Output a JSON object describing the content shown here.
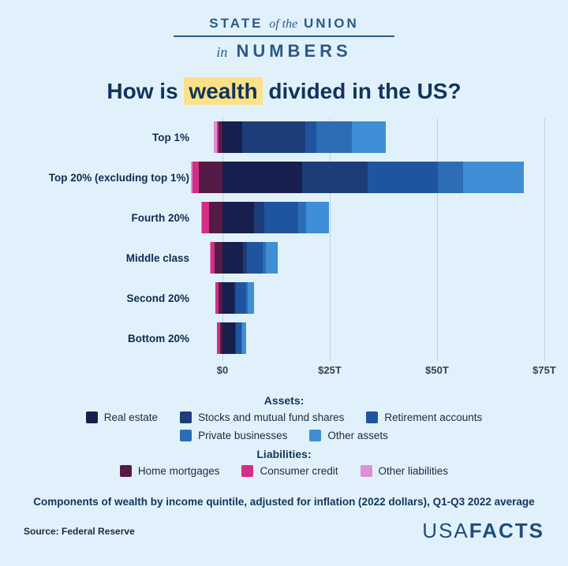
{
  "logo": {
    "state": "STATE",
    "of_the": "of the",
    "union": "UNION",
    "in": "in",
    "numbers": "NUMBERS"
  },
  "title": {
    "pre": "How is ",
    "highlight": "wealth",
    "post": " divided in the US?"
  },
  "chart_data": {
    "type": "bar",
    "stacked": true,
    "orientation": "horizontal",
    "unit": "trillions of 2022 dollars",
    "x_ticks": [
      "$0",
      "$25T",
      "$50T",
      "$75T"
    ],
    "x_tick_values": [
      0,
      25,
      50,
      75
    ],
    "xlim": [
      -8,
      80
    ],
    "grid": true,
    "categories": [
      "Top 1%",
      "Top 20% (excluding top 1%)",
      "Fourth 20%",
      "Middle class",
      "Second 20%",
      "Bottom 20%"
    ],
    "asset_order": [
      "real_estate",
      "stocks",
      "retirement",
      "private_businesses",
      "other_assets"
    ],
    "liability_order_from_zero": [
      "home_mortgages",
      "consumer_credit",
      "other_liabilities"
    ],
    "rows": [
      {
        "label": "Top 1%",
        "assets": {
          "real_estate": 4.6,
          "stocks": 14.7,
          "retirement": 2.6,
          "private_businesses": 8.3,
          "other_assets": 7.9
        },
        "liabilities": {
          "home_mortgages": 1.0,
          "consumer_credit": 0.3,
          "other_liabilities": 0.8
        }
      },
      {
        "label": "Top 20% (excluding top 1%)",
        "assets": {
          "real_estate": 18.6,
          "stocks": 15.3,
          "retirement": 16.2,
          "private_businesses": 5.9,
          "other_assets": 14.3
        },
        "liabilities": {
          "home_mortgages": 5.5,
          "consumer_credit": 1.5,
          "other_liabilities": 0.4
        }
      },
      {
        "label": "Fourth 20%",
        "assets": {
          "real_estate": 7.4,
          "stocks": 2.4,
          "retirement": 7.9,
          "private_businesses": 1.8,
          "other_assets": 5.3
        },
        "liabilities": {
          "home_mortgages": 3.2,
          "consumer_credit": 1.5,
          "other_liabilities": 0.3
        }
      },
      {
        "label": "Middle class",
        "assets": {
          "real_estate": 4.8,
          "stocks": 0.9,
          "retirement": 3.7,
          "private_businesses": 0.7,
          "other_assets": 2.8
        },
        "liabilities": {
          "home_mortgages": 1.8,
          "consumer_credit": 0.9,
          "other_liabilities": 0.2
        }
      },
      {
        "label": "Second 20%",
        "assets": {
          "real_estate": 2.8,
          "stocks": 0.4,
          "retirement": 2.4,
          "private_businesses": 0.2,
          "other_assets": 1.5
        },
        "liabilities": {
          "home_mortgages": 1.0,
          "consumer_credit": 0.6,
          "other_liabilities": 0.1
        }
      },
      {
        "label": "Bottom 20%",
        "assets": {
          "real_estate": 2.9,
          "stocks": 0.2,
          "retirement": 1.3,
          "private_businesses": 0.2,
          "other_assets": 0.9
        },
        "liabilities": {
          "home_mortgages": 0.5,
          "consumer_credit": 0.7,
          "other_liabilities": 0.1
        }
      }
    ],
    "colors": {
      "real_estate": "#171f4e",
      "stocks": "#1d3d78",
      "retirement": "#1f55a0",
      "private_businesses": "#2d6db6",
      "other_assets": "#3f8ed6",
      "home_mortgages": "#551a45",
      "consumer_credit": "#d62e87",
      "other_liabilities": "#df8fd4"
    },
    "legend_position": "bottom"
  },
  "legend": {
    "assets_heading": "Assets:",
    "liabilities_heading": "Liabilities:",
    "real_estate": "Real estate",
    "stocks": "Stocks and mutual fund shares",
    "retirement": "Retirement accounts",
    "private_businesses": "Private businesses",
    "other_assets": "Other assets",
    "home_mortgages": "Home mortgages",
    "consumer_credit": "Consumer credit",
    "other_liabilities": "Other liabilities"
  },
  "caption": "Components of wealth by income quintile, adjusted for inflation (2022 dollars), Q1-Q3 2022 average",
  "source": "Source: Federal Reserve",
  "brand": {
    "usa": "USA",
    "facts": "FACTS"
  },
  "theme": {
    "background": "#e1f1fc",
    "navy_text": "#12355e",
    "logo_blue": "#2b5a83",
    "highlight_yellow": "#fbe187",
    "gridline": "#c3cfd9",
    "brand_blue": "#1d4e7e"
  }
}
